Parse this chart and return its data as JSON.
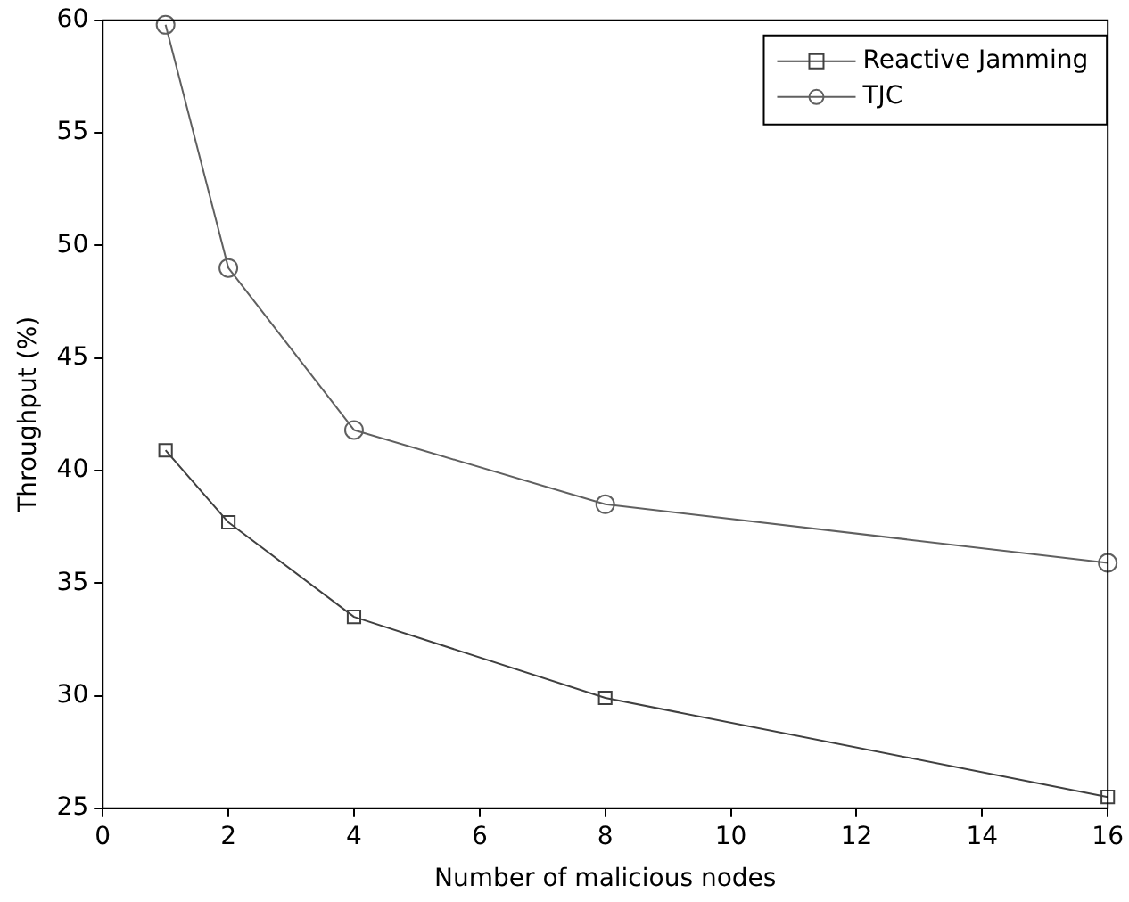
{
  "chart_data": {
    "type": "line",
    "xlabel": "Number of malicious nodes",
    "ylabel": "Throughput (%)",
    "x": [
      1,
      2,
      4,
      8,
      16
    ],
    "series": [
      {
        "name": "Reactive Jamming",
        "color": "#404040",
        "values": [
          40.9,
          37.7,
          33.5,
          29.9,
          25.5
        ],
        "marker": "square"
      },
      {
        "name": "TJC",
        "color": "#606060",
        "values": [
          59.8,
          49.0,
          41.8,
          38.5,
          35.9
        ],
        "marker": "circle"
      }
    ],
    "xlim": [
      0,
      16
    ],
    "xticks": [
      0,
      2,
      4,
      6,
      8,
      10,
      12,
      14,
      16
    ],
    "ylim": [
      25,
      60
    ],
    "yticks": [
      25,
      30,
      35,
      40,
      45,
      50,
      55,
      60
    ],
    "grid": false,
    "legend": "top right",
    "line_style": "solid"
  }
}
